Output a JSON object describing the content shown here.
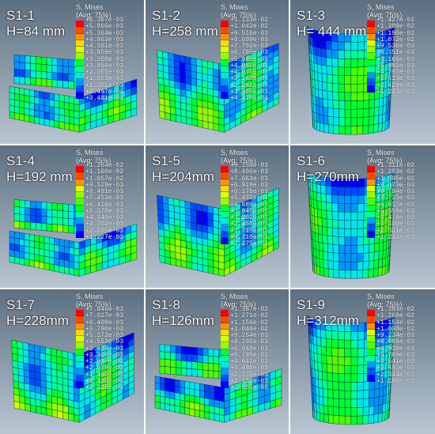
{
  "panels": [
    {
      "id": "S1-1",
      "height": "H=84 mm",
      "legend_title": "S, Mises",
      "legend_sub": "(Avg: 75%)",
      "values": [
        "+6.367e-03",
        "+5.866e-03",
        "+5.364e-03",
        "+4.863e-03",
        "+4.361e-03",
        "+3.859e-03",
        "+3.358e-03",
        "+2.856e-03",
        "+2.355e-03",
        "+1.853e-03",
        "+1.351e-03",
        "+8.497e-04",
        "+3.481e-04"
      ],
      "shape": "low-box"
    },
    {
      "id": "S1-2",
      "height": "H=258 mm",
      "legend_title": "S, Mises",
      "legend_sub": "(Avg: 75%)",
      "values": [
        "+1.133e-02",
        "+1.042e-02",
        "+9.516e-03",
        "+8.609e-03",
        "+7.702e-03",
        "+6.795e-03",
        "+5.889e-03",
        "+4.982e-03",
        "+4.075e-03",
        "+3.168e-03",
        "+2.261e-03",
        "+1.355e-03",
        "+4.478e-04"
      ],
      "shape": "tall-box"
    },
    {
      "id": "S1-3",
      "height": "H= 444 mm",
      "legend_title": "S, Mises",
      "legend_sub": "(Avg: 75%)",
      "values": [
        "+1.427e-02",
        "+1.309e-02",
        "+1.190e-02",
        "+1.072e-02",
        "+9.536e-03",
        "+8.351e-03",
        "+7.166e-03",
        "+5.982e-03",
        "+4.797e-03",
        "+3.613e-03",
        "+2.428e-03",
        "+1.243e-03"
      ],
      "shape": "cylinder"
    },
    {
      "id": "S1-4",
      "height": "H=192 mm",
      "legend_title": "S, Mises",
      "legend_sub": "(Avg: 75%)",
      "values": [
        "+1.264e-02",
        "+1.160e-02",
        "+1.057e-02",
        "+9.529e-03",
        "+8.491e-03",
        "+7.453e-03",
        "+6.416e-03",
        "+5.378e-03",
        "+4.340e-03",
        "+3.302e-03",
        "+2.265e-03",
        "+1.227e-03"
      ],
      "shape": "low-box"
    },
    {
      "id": "S1-5",
      "height": "H=204mm",
      "legend_title": "S, Mises",
      "legend_sub": "(Avg: 75%)",
      "values": [
        "+9.150e-03",
        "+8.406e-03",
        "+7.663e-03",
        "+6.919e-03",
        "+6.176e-03",
        "+5.432e-03",
        "+4.689e-03",
        "+3.945e-03",
        "+3.202e-03",
        "+2.458e-03",
        "+1.715e-03",
        "+9.710e-04",
        "+2.275e-04"
      ],
      "shape": "tall-box"
    },
    {
      "id": "S1-6",
      "height": "H=270mm",
      "legend_title": "S, Mises",
      "legend_sub": "(Avg: 75%)",
      "values": [
        "+1.311e-02",
        "+1.203e-02",
        "+1.095e-02",
        "+9.873e-03",
        "+8.794e-03",
        "+7.715e-03",
        "+6.637e-03",
        "+5.558e-03",
        "+4.479e-03",
        "+3.400e-03",
        "+2.321e-03",
        "+1.242e-03"
      ],
      "shape": "cylinder"
    },
    {
      "id": "S1-7",
      "height": "H=228mm",
      "legend_title": "S, Mises",
      "legend_sub": "(Avg: 75%)",
      "values": [
        "+7.646e-03",
        "+7.027e-03",
        "+6.409e-03",
        "+5.790e-03",
        "+5.172e-03",
        "+4.553e-03",
        "+3.934e-03",
        "+3.316e-03",
        "+2.697e-03",
        "+2.079e-03",
        "+1.460e-03",
        "+8.414e-04",
        "+2.228e-04"
      ],
      "shape": "tall-box"
    },
    {
      "id": "S1-8",
      "height": "H=126mm",
      "legend_title": "S, Mises",
      "legend_sub": "(Avg: 75%)",
      "values": [
        "+1.387e-02",
        "+1.271e-02",
        "+1.156e-02",
        "+1.040e-02",
        "+9.254e-03",
        "+8.101e-03",
        "+6.948e-03",
        "+5.795e-03",
        "+4.641e-03",
        "+3.488e-03",
        "+2.335e-03",
        "+1.182e-03",
        "+2.906e-05"
      ],
      "shape": "low-box"
    },
    {
      "id": "S1-9",
      "height": "H=312mm",
      "legend_title": "S, Mises",
      "legend_sub": "(Avg: 75%)",
      "values": [
        "+1.383e-02",
        "+1.268e-02",
        "+1.153e-02",
        "+1.038e-02",
        "+9.234e-03",
        "+8.086e-03",
        "+6.938e-03",
        "+5.789e-03",
        "+4.641e-03",
        "+3.493e-03",
        "+2.344e-03",
        "+1.196e-03"
      ],
      "shape": "cylinder"
    }
  ],
  "colors": {
    "contour": [
      "#ff0000",
      "#ff4b00",
      "#ff9600",
      "#ffdc00",
      "#dcff00",
      "#96ff00",
      "#4bff00",
      "#00ff32",
      "#00ff96",
      "#00e6e6",
      "#0096ff",
      "#004bff",
      "#0000ff"
    ],
    "background_top": "#5c6f80",
    "background_bottom": "#b9c6d2",
    "mesh_blue": "#2b5fd9",
    "mesh_line": "#0a1a40"
  }
}
